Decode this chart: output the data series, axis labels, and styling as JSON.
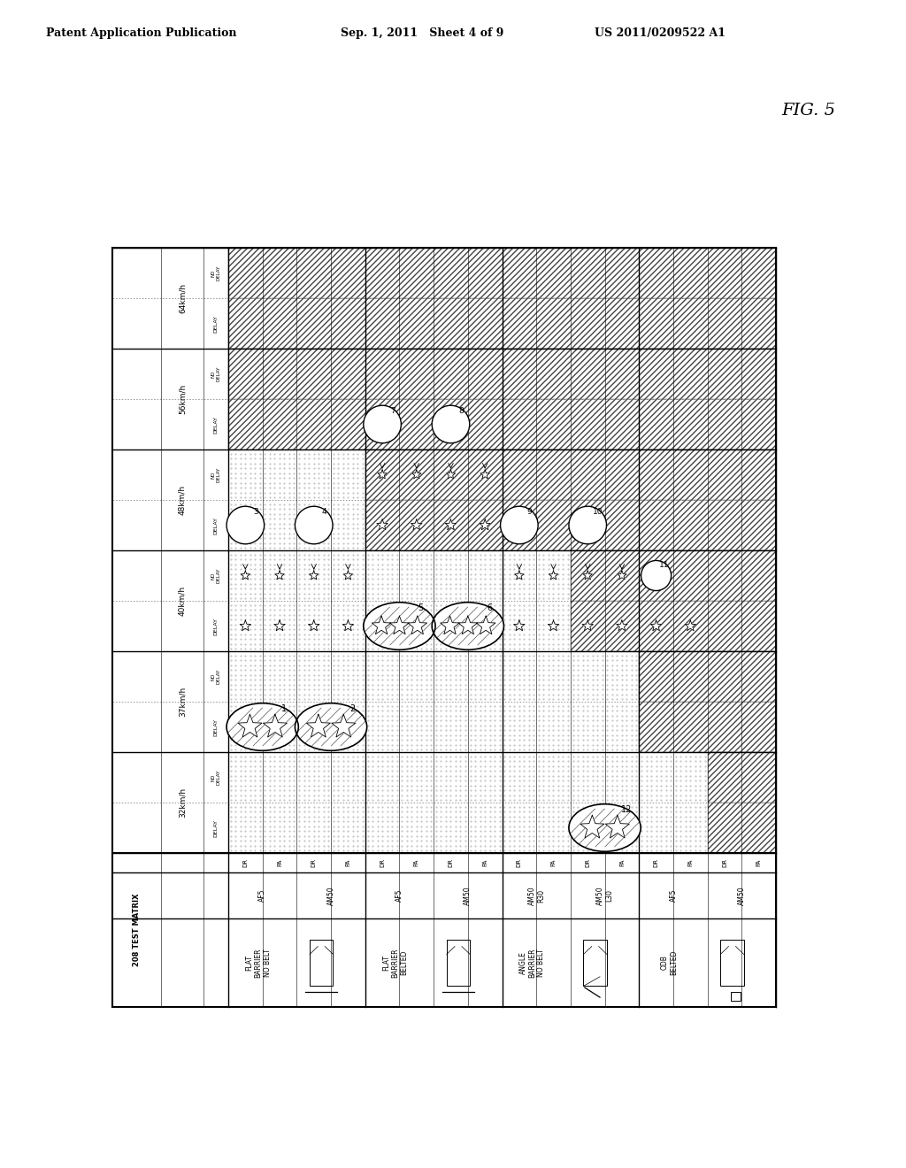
{
  "title_left": "Patent Application Publication",
  "title_mid": "Sep. 1, 2011   Sheet 4 of 9",
  "title_right": "US 2011/0209522 A1",
  "fig_label": "FIG. 5",
  "matrix_label": "208 TEST MATRIX",
  "speed_groups": [
    "64km/h",
    "56km/h",
    "48km/h",
    "40km/h",
    "37km/h",
    "32km/h"
  ],
  "dummy_labels": [
    "AF5",
    "AM50",
    "AF5",
    "AM50",
    "AM50\nR30",
    "AM50\nL30",
    "AF5",
    "AM50"
  ],
  "group_labels": [
    "FLAT BARRIER NO BELT",
    "FLAT BARRIER BELTED",
    "ANGLE BARRIER NO BELT",
    "ODB BELTED"
  ],
  "background_color": "#ffffff"
}
